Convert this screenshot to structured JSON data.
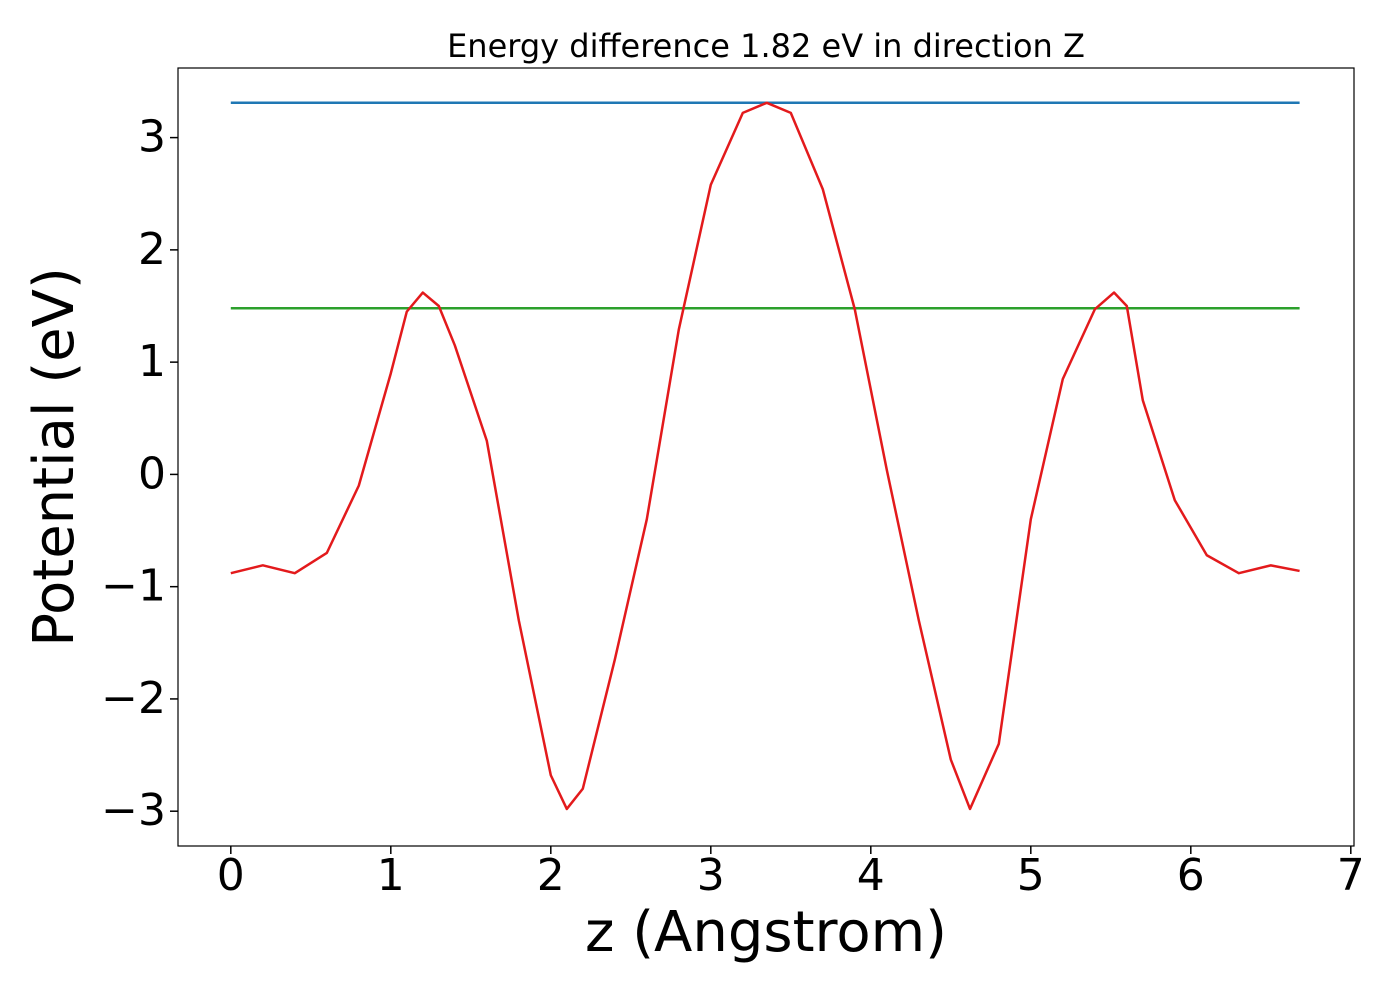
{
  "chart_data": {
    "type": "line",
    "title": "Energy difference 1.82 eV in direction Z",
    "xlabel": "z (Angstrom)",
    "ylabel": "Potential (eV)",
    "xlim": [
      -0.33,
      7.02
    ],
    "ylim": [
      -3.31,
      3.62
    ],
    "xticks": [
      0,
      1,
      2,
      3,
      4,
      5,
      6,
      7
    ],
    "yticks": [
      {
        "value": -3,
        "label": "−3"
      },
      {
        "value": -2,
        "label": "−2"
      },
      {
        "value": -1,
        "label": "−1"
      },
      0,
      1,
      2,
      3
    ],
    "grid": false,
    "series": [
      {
        "color": "#1f77b4",
        "x": [
          0,
          6.68
        ],
        "values": [
          3.31,
          3.31
        ]
      },
      {
        "color": "#2ca02c",
        "x": [
          0,
          6.68
        ],
        "values": [
          1.48,
          1.48
        ]
      },
      {
        "color": "#e31a1c",
        "x": [
          0,
          0.2,
          0.4,
          0.6,
          0.8,
          1.0,
          1.1,
          1.2,
          1.3,
          1.4,
          1.6,
          1.8,
          2.0,
          2.1,
          2.2,
          2.4,
          2.6,
          2.8,
          3.0,
          3.2,
          3.35,
          3.5,
          3.7,
          3.9,
          4.1,
          4.3,
          4.5,
          4.62,
          4.8,
          5.0,
          5.2,
          5.4,
          5.52,
          5.6,
          5.7,
          5.9,
          6.1,
          6.3,
          6.5,
          6.68
        ],
        "values": [
          -0.88,
          -0.81,
          -0.88,
          -0.7,
          -0.1,
          0.9,
          1.45,
          1.62,
          1.5,
          1.15,
          0.3,
          -1.3,
          -2.68,
          -2.98,
          -2.8,
          -1.65,
          -0.4,
          1.29,
          2.58,
          3.22,
          3.31,
          3.22,
          2.54,
          1.47,
          0.04,
          -1.3,
          -2.54,
          -2.98,
          -2.4,
          -0.4,
          0.85,
          1.47,
          1.62,
          1.5,
          0.66,
          -0.23,
          -0.72,
          -0.88,
          -0.81,
          -0.86
        ]
      }
    ]
  }
}
